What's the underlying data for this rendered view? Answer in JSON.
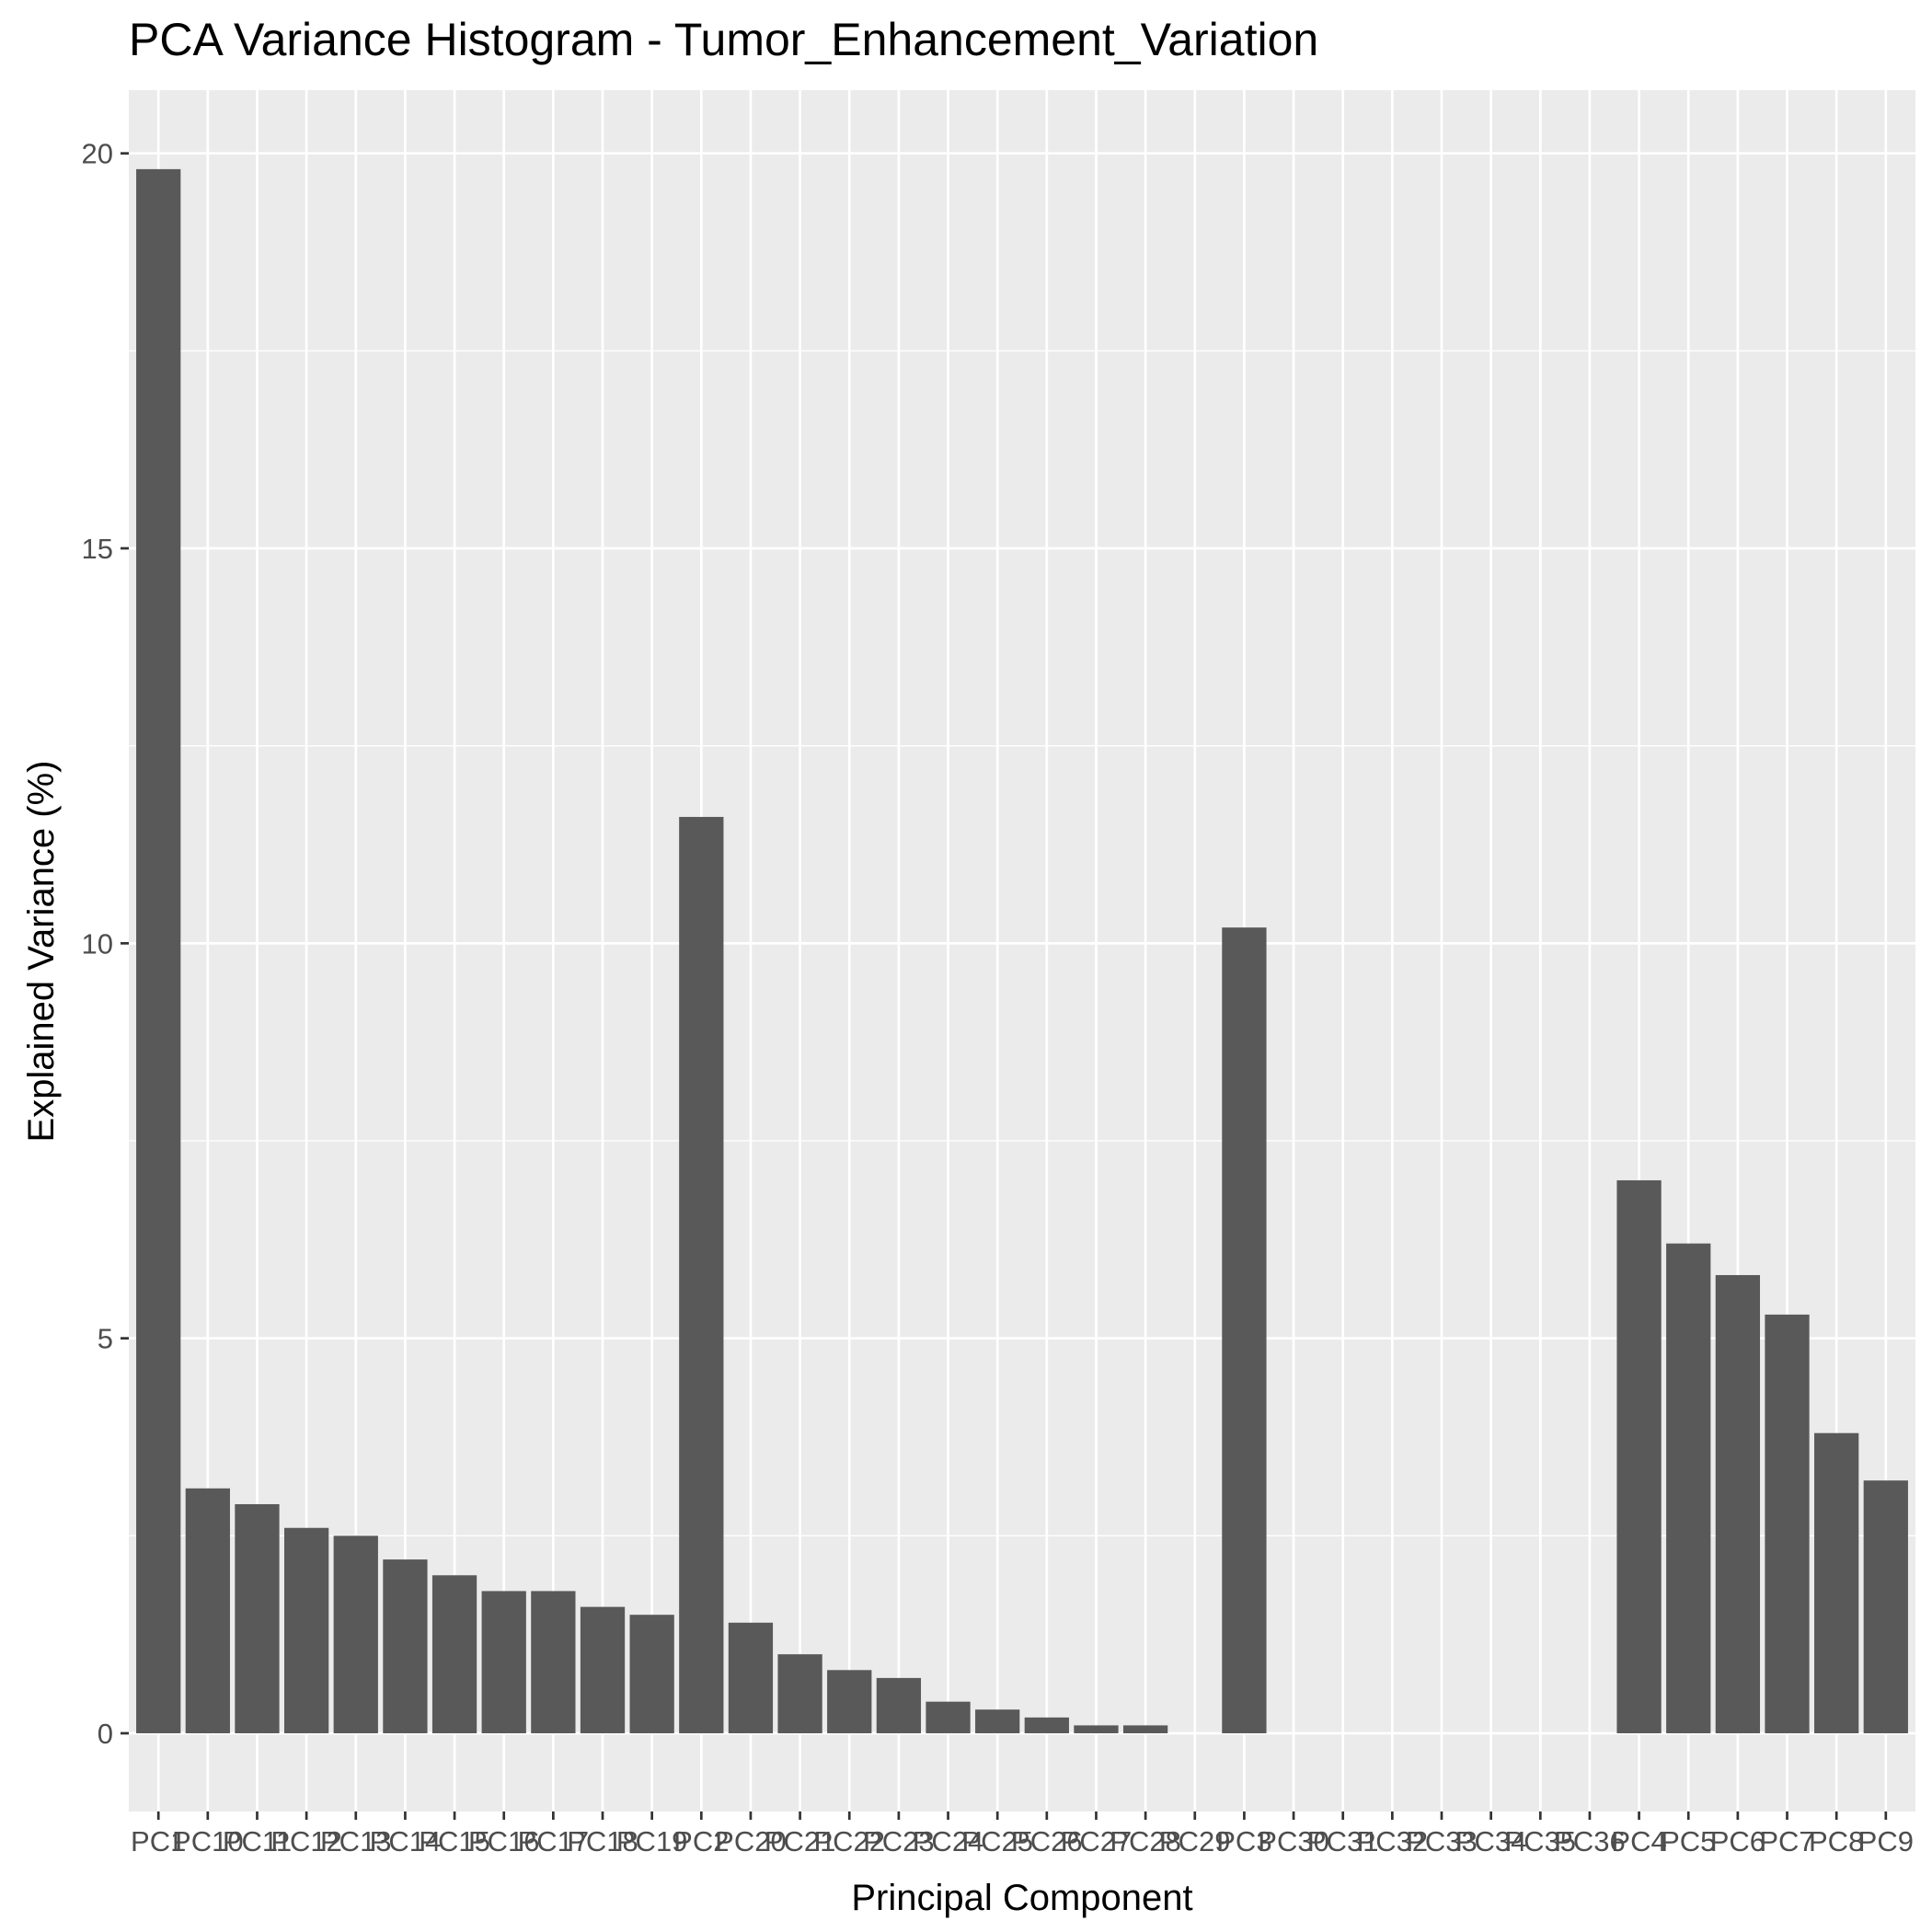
{
  "chart_data": {
    "type": "bar",
    "title": "PCA Variance Histogram - Tumor_Enhancement_Variation",
    "xlabel": "Principal Component",
    "ylabel": "Explained Variance (%)",
    "categories": [
      "PC1",
      "PC10",
      "PC11",
      "PC12",
      "PC13",
      "PC14",
      "PC15",
      "PC16",
      "PC17",
      "PC18",
      "PC19",
      "PC2",
      "PC20",
      "PC21",
      "PC22",
      "PC23",
      "PC24",
      "PC25",
      "PC26",
      "PC27",
      "PC28",
      "PC29",
      "PC3",
      "PC30",
      "PC31",
      "PC32",
      "PC33",
      "PC34",
      "PC35",
      "PC36",
      "PC4",
      "PC5",
      "PC6",
      "PC7",
      "PC8",
      "PC9"
    ],
    "values": [
      19.8,
      3.1,
      2.9,
      2.6,
      2.5,
      2.2,
      2.0,
      1.8,
      1.8,
      1.6,
      1.5,
      11.6,
      1.4,
      1.0,
      0.8,
      0.7,
      0.4,
      0.3,
      0.2,
      0.1,
      0.1,
      0.0,
      10.2,
      0.0,
      0.0,
      0.0,
      0.0,
      0.0,
      0.0,
      0.0,
      7.0,
      6.2,
      5.8,
      5.3,
      3.8,
      3.2
    ],
    "yticks": [
      0,
      5,
      10,
      15,
      20
    ],
    "ylim": [
      -0.99,
      20.8
    ],
    "grid": true,
    "legend": "none",
    "colors": {
      "bar": "#595959",
      "panel": "#ebebeb",
      "grid": "#ffffff",
      "tick": "#333333"
    }
  }
}
